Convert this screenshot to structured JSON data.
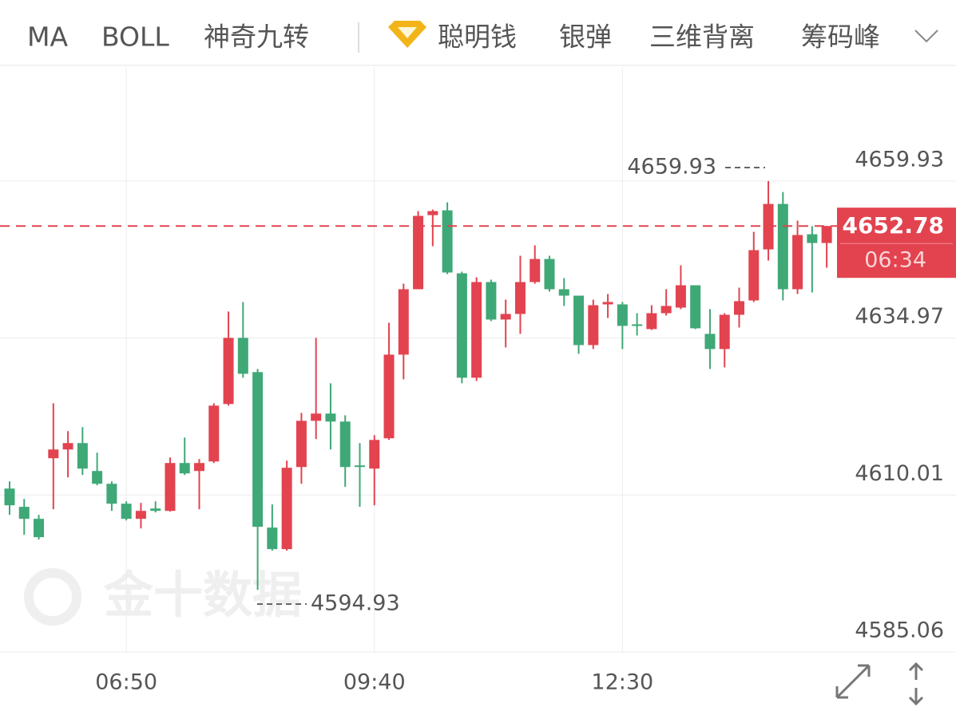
{
  "toolbar": [
    "MA",
    "BOLL",
    "神奇九转",
    "聪明钱",
    "银弹",
    "三维背离",
    "筹码峰"
  ],
  "watermark": "金十数据",
  "chart_data": {
    "type": "candlestick",
    "categories": [
      null,
      null,
      null,
      null,
      null,
      null,
      null,
      null,
      "06:50",
      null,
      null,
      null,
      null,
      null,
      null,
      null,
      null,
      null,
      null,
      null,
      null,
      null,
      null,
      null,
      null,
      "09:40",
      null,
      null,
      null,
      null,
      null,
      null,
      null,
      null,
      null,
      null,
      null,
      null,
      null,
      null,
      null,
      null,
      "12:30",
      null,
      null,
      null,
      null,
      null,
      null,
      null,
      null,
      null,
      null,
      null,
      null,
      null,
      null
    ],
    "open": [
      4611.04,
      4608.13,
      4606.23,
      4615.86,
      4617.25,
      4618.27,
      4613.83,
      4611.8,
      4608.63,
      4606.23,
      4607.87,
      4607.49,
      4615.1,
      4613.83,
      4615.35,
      4624.48,
      4635.0,
      4629.55,
      4604.83,
      4601.41,
      4614.46,
      4621.81,
      4622.96,
      4621.69,
      4614.72,
      4614.21,
      4619.03,
      4632.33,
      4642.73,
      4654.51,
      4655.27,
      4645.26,
      4628.66,
      4643.87,
      4637.91,
      4638.8,
      4643.87,
      4647.54,
      4642.73,
      4641.71,
      4633.85,
      4640.32,
      4640.32,
      4637.15,
      4636.39,
      4638.92,
      4639.81,
      4643.36,
      4635.63,
      4633.22,
      4638.67,
      4640.95,
      4649.06,
      4656.29,
      4642.73,
      4651.47,
      4650.08
    ],
    "high": [
      4612.18,
      4609.39,
      4606.86,
      4624.6,
      4620.17,
      4620.8,
      4616.75,
      4612.18,
      4609.01,
      4608.76,
      4609.01,
      4615.98,
      4619.15,
      4615.73,
      4624.6,
      4639.18,
      4640.7,
      4630.05,
      4608.51,
      4615.48,
      4623.08,
      4635.0,
      4627.77,
      4622.7,
      4618.27,
      4619.53,
      4637.4,
      4643.61,
      4655.15,
      4655.4,
      4656.54,
      4645.51,
      4644.63,
      4644.25,
      4641.08,
      4648.05,
      4649.7,
      4648.05,
      4644.5,
      4641.71,
      4641.08,
      4641.97,
      4640.7,
      4638.92,
      4640.19,
      4642.73,
      4646.53,
      4643.36,
      4639.56,
      4638.92,
      4642.98,
      4651.85,
      4659.93,
      4658.19,
      4653.63,
      4652.74,
      4652.78
    ],
    "low": [
      4606.86,
      4603.69,
      4602.93,
      4607.75,
      4612.82,
      4613.2,
      4611.55,
      4607.49,
      4605.97,
      4604.7,
      4607.24,
      4607.37,
      4613.2,
      4607.75,
      4615.1,
      4624.22,
      4628.66,
      4594.93,
      4601.16,
      4601.16,
      4611.8,
      4618.9,
      4617.25,
      4611.3,
      4608.13,
      4608.38,
      4618.77,
      4628.41,
      4642.73,
      4649.57,
      4645.13,
      4627.77,
      4628.15,
      4637.66,
      4633.47,
      4635.63,
      4643.61,
      4642.35,
      4640.07,
      4632.46,
      4633.22,
      4638.16,
      4633.22,
      4635.38,
      4636.26,
      4638.54,
      4639.56,
      4636.39,
      4630.05,
      4630.31,
      4636.64,
      4640.7,
      4647.29,
      4640.95,
      4641.97,
      4642.22,
      4646.15
    ],
    "close": [
      4608.38,
      4606.23,
      4603.31,
      4617.25,
      4618.27,
      4614.21,
      4611.8,
      4608.63,
      4606.23,
      4607.49,
      4607.49,
      4615.1,
      4613.45,
      4615.1,
      4624.22,
      4635.0,
      4629.29,
      4604.96,
      4601.41,
      4614.34,
      4621.81,
      4622.96,
      4621.69,
      4614.46,
      4614.46,
      4618.77,
      4632.33,
      4642.73,
      4654.39,
      4655.15,
      4645.39,
      4628.66,
      4643.87,
      4637.91,
      4638.8,
      4643.87,
      4647.54,
      4642.73,
      4641.71,
      4633.85,
      4640.19,
      4640.7,
      4636.9,
      4636.9,
      4638.92,
      4640.07,
      4643.36,
      4636.52,
      4633.22,
      4638.67,
      4640.83,
      4648.94,
      4656.29,
      4642.73,
      4651.35,
      4650.08,
      4652.78
    ],
    "up_color": "#e2434f",
    "down_color": "#3fa877",
    "ylim": [
      4585.06,
      4677.93
    ],
    "yticks": [
      4585.06,
      4610.01,
      4634.97,
      4659.93
    ],
    "grid": true,
    "last_price": 4652.78,
    "countdown": "06:34",
    "high_mark": 4659.93,
    "low_mark": 4594.93
  }
}
